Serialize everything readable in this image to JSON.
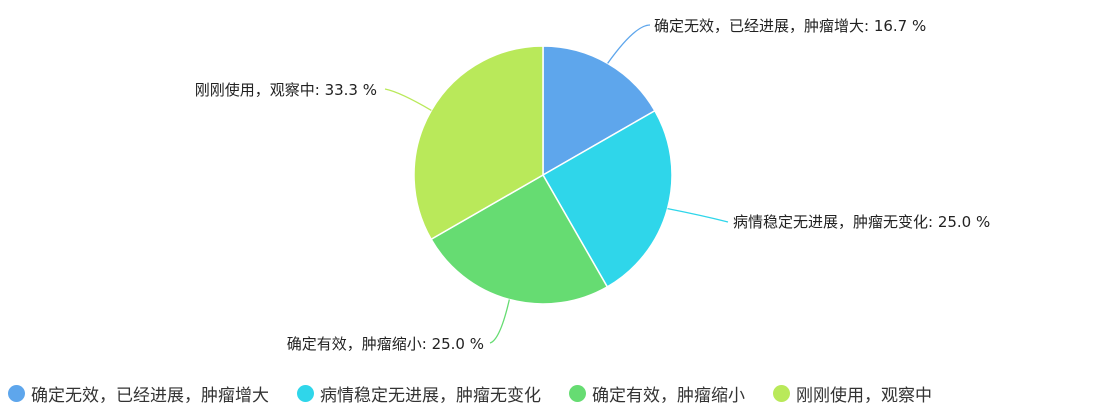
{
  "chart_data": {
    "type": "pie",
    "start_angle": "top, clockwise",
    "slices": [
      {
        "name": "确定无效，已经进展，肿瘤增大",
        "value": 16.7,
        "label": "确定无效，已经进展，肿瘤增大: 16.7 %",
        "color": "#5ea6ec"
      },
      {
        "name": "病情稳定无进展，肿瘤无变化",
        "value": 25.0,
        "label": "病情稳定无进展，肿瘤无变化: 25.0 %",
        "color": "#2fd6ea"
      },
      {
        "name": "确定有效，肿瘤缩小",
        "value": 25.0,
        "label": "确定有效，肿瘤缩小: 25.0 %",
        "color": "#66dc72"
      },
      {
        "name": "刚刚使用，观察中",
        "value": 33.3,
        "label": "刚刚使用，观察中: 33.3 %",
        "color": "#b9e95a"
      }
    ],
    "legend_position": "bottom"
  }
}
